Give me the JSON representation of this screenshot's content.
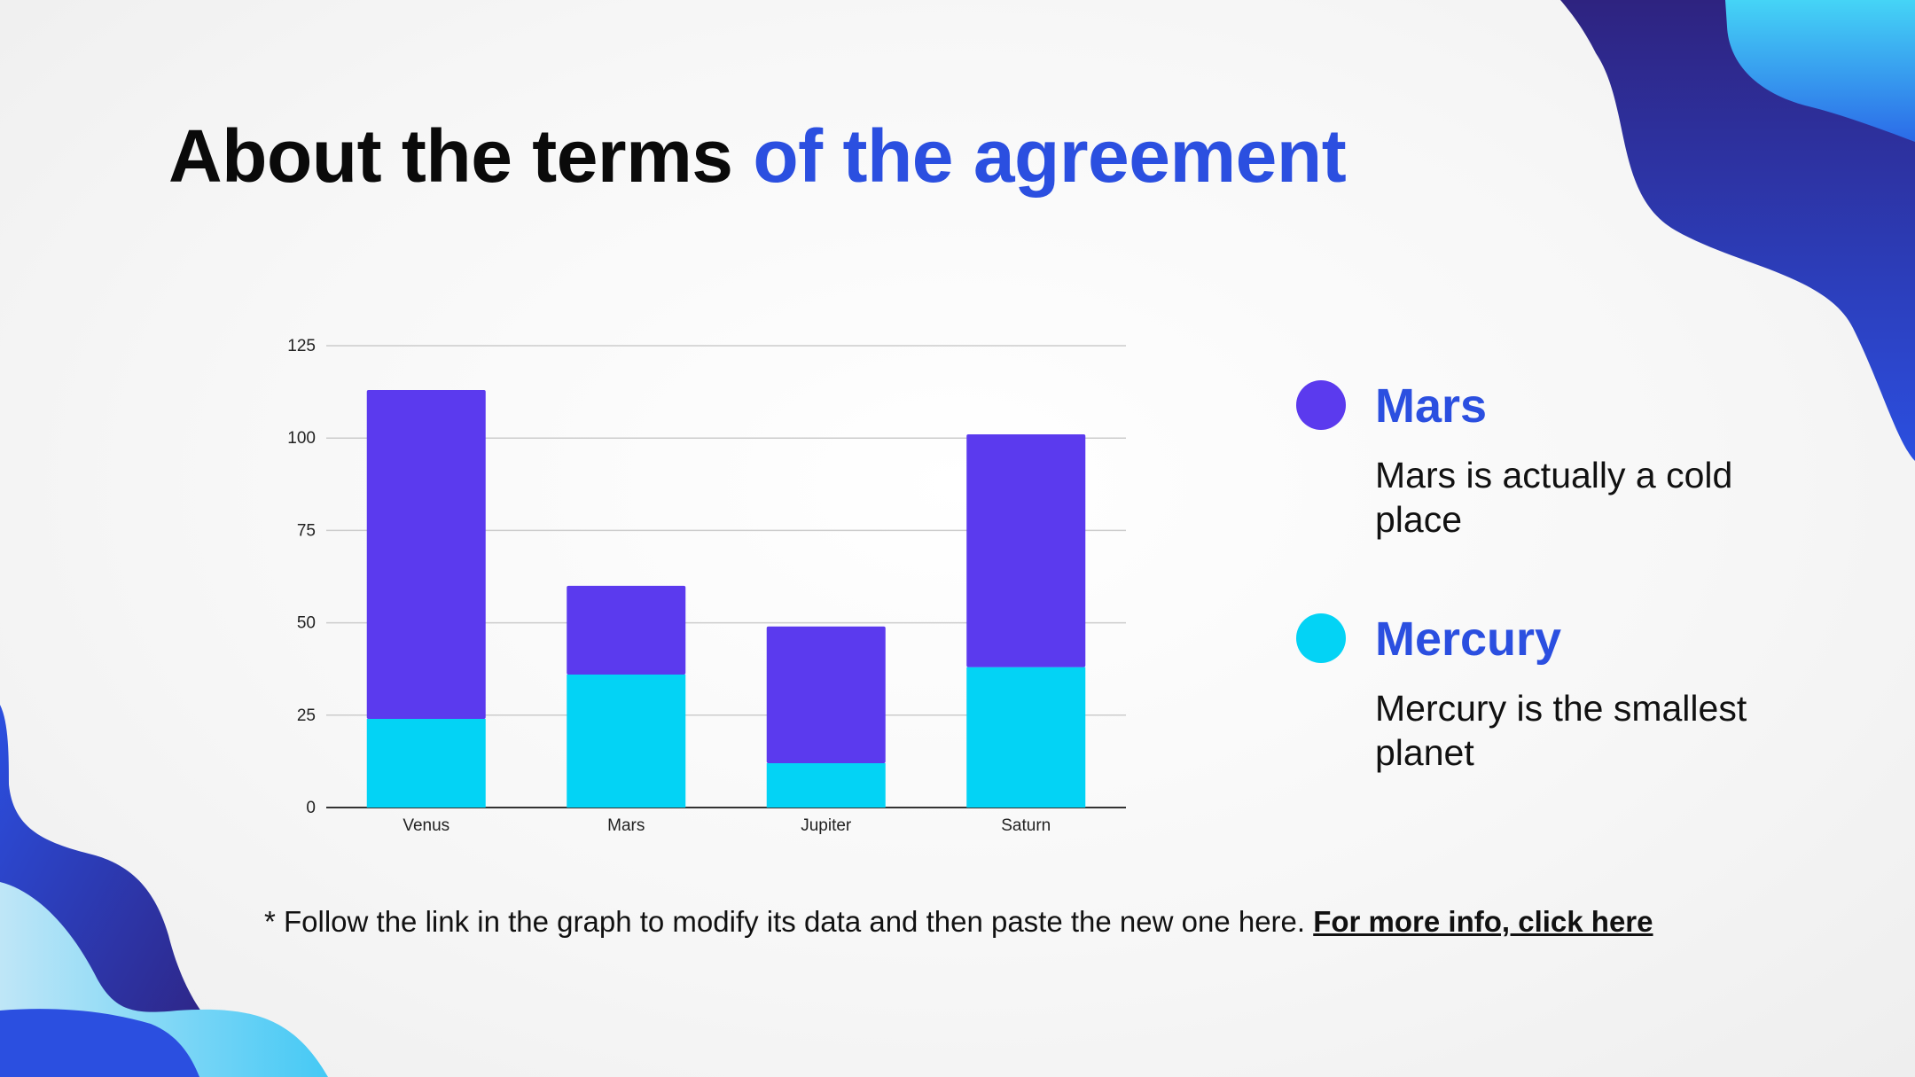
{
  "slide": {
    "title_main": "About the terms ",
    "title_accent": "of the agreement",
    "footnote_text": "* Follow the link in the graph to modify its data and then paste the new one here. ",
    "footnote_link": "For more info, click here"
  },
  "legend": [
    {
      "name": "Mars",
      "description": "Mars is actually a cold place",
      "color": "#5b3aee"
    },
    {
      "name": "Mercury",
      "description": "Mercury is the smallest planet",
      "color": "#03d3f5"
    }
  ],
  "colors": {
    "accent": "#2b4fe0",
    "bar_top": "#5b3aee",
    "bar_bottom": "#03d3f5",
    "deco_dark": "#2e2380",
    "deco_mid": "#2b4fe0",
    "deco_light": "#45c9f5"
  },
  "chart_data": {
    "type": "bar",
    "stacked": true,
    "categories": [
      "Venus",
      "Mars",
      "Jupiter",
      "Saturn"
    ],
    "series": [
      {
        "values": [
          24,
          36,
          12,
          38
        ],
        "color": "#03d3f5"
      },
      {
        "values": [
          89,
          24,
          37,
          63
        ],
        "color": "#5b3aee"
      }
    ],
    "yticks": [
      0,
      25,
      50,
      75,
      100,
      125
    ],
    "ylim": [
      0,
      125
    ],
    "grid": true,
    "title": "",
    "xlabel": "",
    "ylabel": ""
  }
}
